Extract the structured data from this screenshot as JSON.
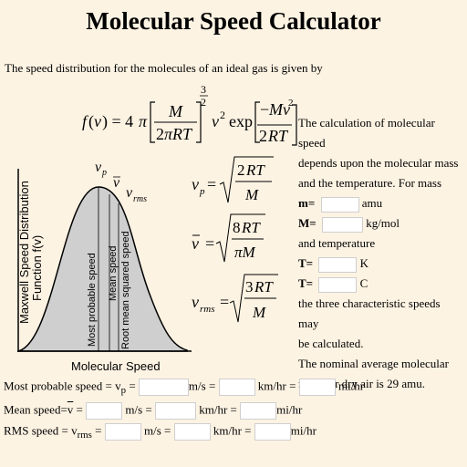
{
  "title": "Molecular Speed Calculator",
  "intro": "The speed distribution for the molecules of an ideal gas is given by",
  "description": {
    "line1": "The calculation of molecular speed",
    "line2": "depends upon the molecular mass",
    "line3": "and the temperature. For mass",
    "after_inputs_1": "the three characteristic speeds may",
    "after_inputs_2": "be calculated.",
    "note_1": "The nominal average molecular",
    "note_2": "mass for dry air is 29 amu."
  },
  "mass_inputs": {
    "m_label": "m=",
    "m_unit": "amu",
    "M_label": "M=",
    "M_unit": "kg/mol",
    "temp_intro": "and temperature",
    "T_label": "T=",
    "T_unit": "K",
    "Tc_label": "T=",
    "Tc_unit": "C"
  },
  "graph": {
    "y_label_1": "Maxwell Speed Distribution",
    "y_label_2": "Function f(v)",
    "x_label": "Molecular Speed",
    "curve_labels": [
      "Most probable speed",
      "Mean speed",
      "Root mean squared speed"
    ]
  },
  "results": {
    "most_probable": {
      "label": "Most probable speed = v",
      "sub": "p",
      "eq": "="
    },
    "mean": {
      "label": "Mean speed=",
      "vbar": "v",
      "eq": "="
    },
    "rms": {
      "label": "RMS speed = v",
      "sub": "rms",
      "eq": "="
    },
    "unit_ms": "m/s =",
    "unit_kmhr": "km/hr =",
    "unit_mihr": "mi/hr"
  }
}
